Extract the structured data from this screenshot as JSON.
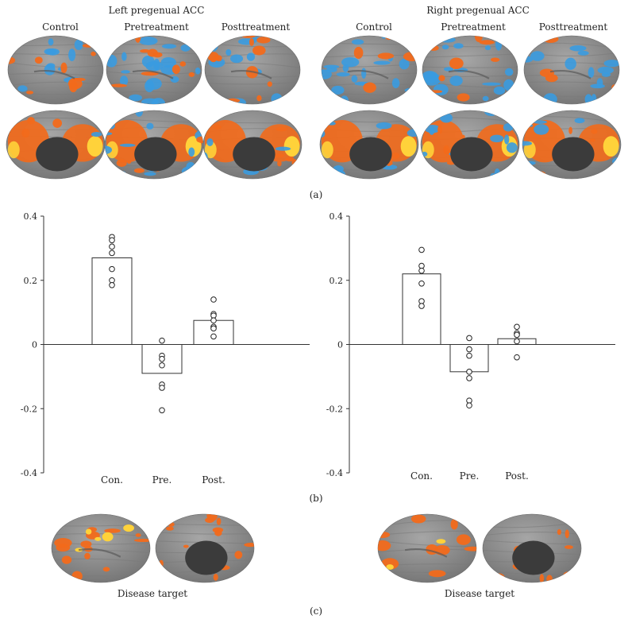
{
  "panel_a": {
    "left_title": "Left pregenual ACC",
    "right_title": "Right pregenual ACC",
    "left_conditions": [
      "Control",
      "Pretreatment",
      "Posttreatment"
    ],
    "right_conditions": [
      "Control",
      "Pretreatment",
      "Posttreatment"
    ],
    "label": "(a)"
  },
  "panel_b": {
    "label": "(b)"
  },
  "panel_c": {
    "left_caption": "Disease target",
    "right_caption": "Disease target",
    "label": "(c)"
  },
  "colors": {
    "positive": "#f26a1b",
    "hot": "#ffd23a",
    "negative": "#3a9be0",
    "cortex": "#8e8e8e",
    "medial_wall": "#3b3b3b"
  },
  "chart_data": [
    {
      "type": "bar",
      "categories": [
        "Con.",
        "Pre.",
        "Post."
      ],
      "values": [
        0.27,
        -0.09,
        0.075
      ],
      "points": [
        [
          0.335,
          0.325,
          0.305,
          0.285,
          0.235,
          0.2,
          0.185
        ],
        [
          0.012,
          -0.035,
          -0.045,
          -0.065,
          -0.125,
          -0.135,
          -0.205
        ],
        [
          0.14,
          0.095,
          0.09,
          0.075,
          0.055,
          0.05,
          0.025
        ]
      ],
      "yticks": [
        "0.4",
        "0.2",
        "0",
        "-0.2",
        "-0.4"
      ],
      "ylim": [
        -0.4,
        0.4
      ],
      "grid": false
    },
    {
      "type": "bar",
      "categories": [
        "Con.",
        "Pre.",
        "Post."
      ],
      "values": [
        0.22,
        -0.085,
        0.018
      ],
      "points": [
        [
          0.295,
          0.245,
          0.23,
          0.19,
          0.135,
          0.12
        ],
        [
          0.02,
          -0.015,
          -0.035,
          -0.085,
          -0.105,
          -0.175,
          -0.19
        ],
        [
          0.055,
          0.035,
          0.03,
          0.01,
          -0.04
        ]
      ],
      "yticks": [
        "0.4",
        "0.2",
        "0",
        "-0.2",
        "-0.4"
      ],
      "ylim": [
        -0.4,
        0.4
      ],
      "grid": false
    }
  ]
}
